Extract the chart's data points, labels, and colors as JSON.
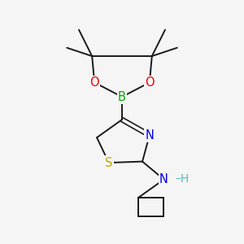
{
  "background_color": "#f5f5f5",
  "atom_colors": {
    "C": "#1a1a1a",
    "N": "#0000ee",
    "O": "#ee0000",
    "B": "#00aa00",
    "S": "#bbaa00",
    "H": "#55bbbb"
  },
  "bond_color": "#1a1a1a",
  "bond_width": 1.4,
  "font_size": 10.5
}
